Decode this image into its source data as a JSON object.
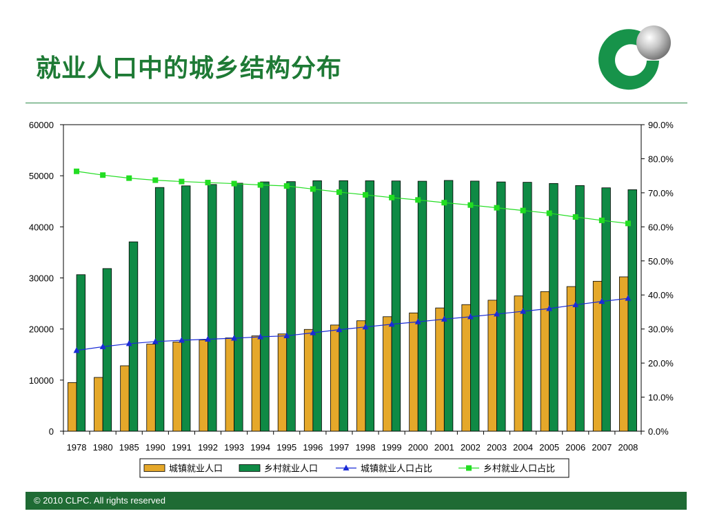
{
  "slide": {
    "title": "就业人口中的城乡结构分布",
    "footer": "© 2010 CLPC. All rights reserved"
  },
  "colors": {
    "title": "#1e7a35",
    "urban_bar": "#e5a82a",
    "rural_bar": "#0f8a45",
    "urban_line": "#1a2bd6",
    "rural_line": "#22dd22",
    "footer_bg": "#1f6b34",
    "logo_green": "#17934a"
  },
  "chart_data": {
    "type": "bar",
    "categories": [
      "1978",
      "1980",
      "1985",
      "1990",
      "1991",
      "1992",
      "1993",
      "1994",
      "1995",
      "1996",
      "1997",
      "1998",
      "1999",
      "2000",
      "2001",
      "2002",
      "2003",
      "2004",
      "2005",
      "2006",
      "2007",
      "2008"
    ],
    "y_ticks": [
      "0",
      "10000",
      "20000",
      "30000",
      "40000",
      "50000",
      "60000"
    ],
    "y2_ticks": [
      "0.0%",
      "10.0%",
      "20.0%",
      "30.0%",
      "40.0%",
      "50.0%",
      "60.0%",
      "70.0%",
      "80.0%",
      "90.0%"
    ],
    "ylim": [
      0,
      60000
    ],
    "y2lim": [
      0,
      0.9
    ],
    "grid": false,
    "legend_position": "bottom",
    "series": [
      {
        "name": "城镇就业人口",
        "kind": "bar",
        "axis": "left",
        "values": [
          9514,
          10525,
          12808,
          17041,
          17465,
          17861,
          18262,
          18653,
          19040,
          19922,
          20781,
          21616,
          22412,
          23151,
          24123,
          24780,
          25639,
          26476,
          27331,
          28310,
          29350,
          30210
        ]
      },
      {
        "name": "乡村就业人口",
        "kind": "bar",
        "axis": "left",
        "values": [
          30638,
          31836,
          37065,
          47708,
          48026,
          48291,
          48546,
          48802,
          48854,
          49028,
          49039,
          49021,
          48982,
          48934,
          49085,
          48960,
          48793,
          48724,
          48494,
          48090,
          47640,
          47270
        ]
      },
      {
        "name": "城镇就业人口占比",
        "kind": "line",
        "axis": "right",
        "marker": "triangle",
        "values": [
          0.237,
          0.248,
          0.257,
          0.263,
          0.267,
          0.27,
          0.273,
          0.277,
          0.28,
          0.289,
          0.298,
          0.306,
          0.314,
          0.321,
          0.329,
          0.336,
          0.344,
          0.352,
          0.36,
          0.371,
          0.381,
          0.39
        ]
      },
      {
        "name": "乡村就业人口占比",
        "kind": "line",
        "axis": "right",
        "marker": "square",
        "values": [
          0.763,
          0.752,
          0.743,
          0.737,
          0.733,
          0.73,
          0.727,
          0.723,
          0.72,
          0.711,
          0.702,
          0.694,
          0.686,
          0.679,
          0.671,
          0.664,
          0.656,
          0.648,
          0.64,
          0.629,
          0.619,
          0.61
        ]
      }
    ]
  }
}
